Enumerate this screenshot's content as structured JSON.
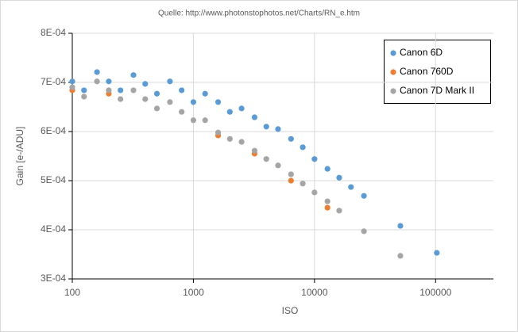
{
  "chart_data": {
    "type": "scatter",
    "title": "Quelle: http://www.photonstophotos.net/Charts/RN_e.htm",
    "xlabel": "ISO",
    "ylabel": "Gain [e-/ADU]",
    "xscale": "log",
    "xlim": [
      100,
      300000
    ],
    "xticks": [
      100,
      1000,
      10000,
      100000
    ],
    "ylim": [
      0.0003,
      0.0008
    ],
    "yticks": [
      {
        "value": 0.0003,
        "label": "3E-04"
      },
      {
        "value": 0.0004,
        "label": "4E-04"
      },
      {
        "value": 0.0005,
        "label": "5E-04"
      },
      {
        "value": 0.0006,
        "label": "6E-04"
      },
      {
        "value": 0.0007,
        "label": "7E-04"
      },
      {
        "value": 0.0008,
        "label": "8E-04"
      }
    ],
    "grid": true,
    "legend": "upper right",
    "series": [
      {
        "name": "Canon 6D",
        "color": "#5b9bd5",
        "x": [
          100,
          125,
          160,
          200,
          250,
          320,
          400,
          500,
          640,
          800,
          1000,
          1250,
          1600,
          2000,
          2500,
          3200,
          4000,
          5000,
          6400,
          8000,
          10000,
          12800,
          16000,
          20000,
          25600,
          51200,
          102400
        ],
        "values": [
          0.000702,
          0.000684,
          0.000721,
          0.000702,
          0.000684,
          0.000715,
          0.000697,
          0.000677,
          0.000702,
          0.000684,
          0.00066,
          0.000677,
          0.00066,
          0.00064,
          0.000647,
          0.000629,
          0.00061,
          0.000605,
          0.000585,
          0.000568,
          0.000544,
          0.000524,
          0.000506,
          0.000487,
          0.000469,
          0.000408,
          0.000353
        ]
      },
      {
        "name": "Canon 760D",
        "color": "#ed7d31",
        "x": [
          100,
          200,
          1600,
          3200,
          6400,
          12800
        ],
        "values": [
          0.000684,
          0.000677,
          0.000592,
          0.000555,
          0.0005,
          0.000445
        ]
      },
      {
        "name": "Canon 7D Mark II",
        "color": "#a5a5a5",
        "x": [
          100,
          125,
          160,
          200,
          250,
          320,
          400,
          500,
          640,
          800,
          1000,
          1250,
          1600,
          2000,
          2500,
          3200,
          4000,
          5000,
          6400,
          8000,
          10000,
          12800,
          16000,
          25600,
          51200
        ],
        "values": [
          0.00069,
          0.000671,
          0.000702,
          0.000684,
          0.000666,
          0.000684,
          0.000666,
          0.000647,
          0.00066,
          0.00064,
          0.000623,
          0.000623,
          0.000598,
          0.000585,
          0.000579,
          0.000561,
          0.000544,
          0.000531,
          0.000513,
          0.000494,
          0.000476,
          0.000458,
          0.000439,
          0.000397,
          0.000347
        ]
      }
    ]
  }
}
